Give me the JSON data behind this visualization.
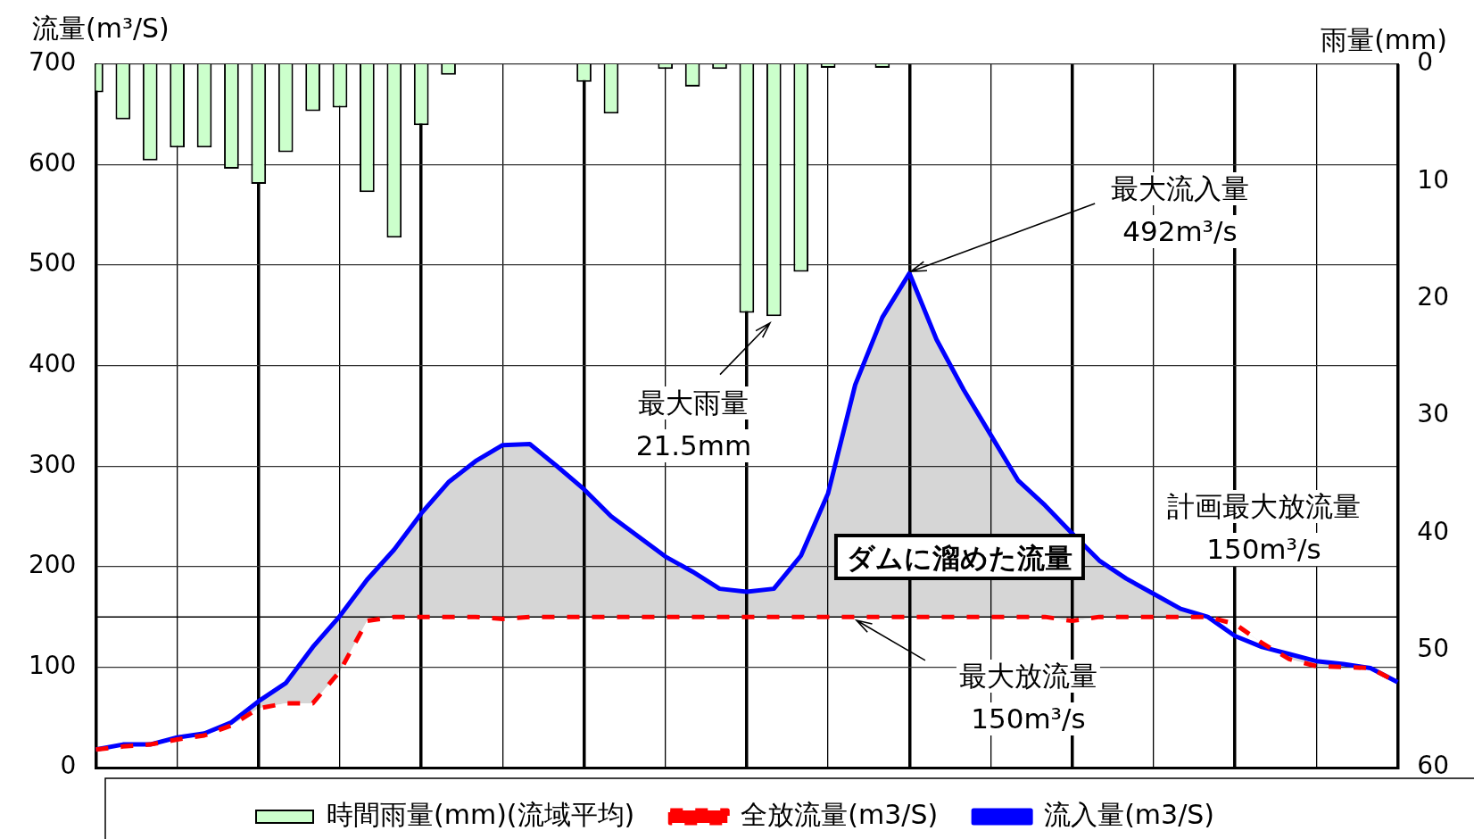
{
  "chart_data": {
    "type": "line",
    "ylabel": "流量(m³/S)",
    "y2label": "雨量(mm)",
    "categories": [
      null,
      null,
      null,
      null,
      null,
      null,
      null,
      null,
      null,
      null,
      null,
      null,
      null,
      null,
      null,
      null,
      null,
      null,
      null,
      null,
      null,
      null,
      null,
      null,
      null,
      null,
      null,
      null,
      null,
      null,
      null,
      null,
      null,
      null,
      null,
      null,
      null,
      null,
      null,
      null,
      null,
      null,
      null,
      null,
      null,
      null,
      null,
      null,
      null
    ],
    "series": [
      {
        "name": "時間雨量(mm)(流域平均)",
        "type": "bar",
        "axis": "y2",
        "color": "#ccffcc",
        "values": [
          2.4,
          4.7,
          8.2,
          7.1,
          7.1,
          8.9,
          10.2,
          7.5,
          4.0,
          3.7,
          10.9,
          14.8,
          5.2,
          0.9,
          0,
          0,
          0,
          0,
          1.5,
          4.2,
          0,
          0.4,
          1.9,
          0.4,
          21.2,
          21.5,
          17.7,
          0.3,
          0,
          0.3,
          0,
          0,
          0,
          0,
          0,
          0,
          0,
          0,
          0,
          0,
          0,
          0,
          0,
          0,
          0,
          0,
          0,
          0,
          0
        ]
      },
      {
        "name": "全放流量(m3/S)",
        "line_style": "dashed",
        "color": "#ff0000",
        "values": [
          18,
          21,
          23,
          28,
          32,
          42,
          59,
          64,
          64,
          96,
          146,
          150,
          150,
          150,
          150,
          148,
          150,
          150,
          150,
          150,
          150,
          150,
          150,
          150,
          150,
          150,
          150,
          150,
          150,
          150,
          150,
          150,
          150,
          150,
          150,
          150,
          146,
          150,
          150,
          150,
          150,
          150,
          143,
          124,
          108,
          101,
          100,
          99,
          85
        ]
      },
      {
        "name": "流入量(m3/S)",
        "line_style": "solid",
        "color": "#0000ff",
        "values": [
          18,
          23,
          23,
          30,
          34,
          45,
          66,
          84,
          120,
          151,
          187,
          217,
          253,
          284,
          305,
          321,
          322,
          300,
          277,
          250,
          230,
          210,
          195,
          178,
          175,
          178,
          211,
          273,
          381,
          448,
          492,
          426,
          376,
          331,
          286,
          261,
          233,
          206,
          188,
          173,
          158,
          150,
          131,
          120,
          113,
          106,
          103,
          99,
          85
        ]
      }
    ],
    "ylim": [
      0,
      700
    ],
    "yticks": [
      0,
      100,
      200,
      300,
      400,
      500,
      600,
      700
    ],
    "y2lim": [
      60,
      0
    ],
    "y2ticks": [
      0,
      10,
      20,
      30,
      40,
      50,
      60
    ],
    "grid": true,
    "legend": "bottom",
    "marker": "none",
    "ref_lines": [
      {
        "axis": "y",
        "value": 150,
        "label": "計画最大放流量\n150m³/s"
      }
    ],
    "annotations": [
      "最大流入量\n492m³/s",
      "最大雨量\n21.5mm",
      "最大放流量\n150m³/s",
      "ダムに溜めた流量"
    ]
  }
}
